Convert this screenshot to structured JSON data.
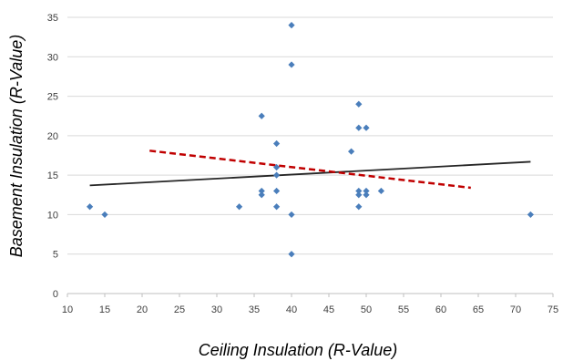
{
  "chart_data": {
    "type": "scatter",
    "title": "",
    "xlabel": "Ceiling Insulation (R-Value)",
    "ylabel": "Basement Insulation (R-Value)",
    "xlim": [
      10,
      75
    ],
    "ylim": [
      0,
      35
    ],
    "x_ticks": [
      10,
      15,
      20,
      25,
      30,
      35,
      40,
      45,
      50,
      55,
      60,
      65,
      70,
      75
    ],
    "y_ticks": [
      0,
      5,
      10,
      15,
      20,
      25,
      30,
      35
    ],
    "grid": "horizontal",
    "legend": "none",
    "series": [
      {
        "marker": "diamond",
        "color": "#4a7ebb",
        "points": [
          [
            13,
            11
          ],
          [
            15,
            10
          ],
          [
            33,
            11
          ],
          [
            36,
            22.5
          ],
          [
            36,
            13
          ],
          [
            36,
            12.5
          ],
          [
            38,
            19
          ],
          [
            38,
            16
          ],
          [
            38,
            15
          ],
          [
            38,
            13
          ],
          [
            38,
            11
          ],
          [
            40,
            34
          ],
          [
            40,
            29
          ],
          [
            40,
            10
          ],
          [
            40,
            5
          ],
          [
            48,
            18
          ],
          [
            49,
            24
          ],
          [
            49,
            21
          ],
          [
            49,
            13
          ],
          [
            49,
            12.5
          ],
          [
            49,
            11
          ],
          [
            50,
            21
          ],
          [
            50,
            13
          ],
          [
            50,
            12.5
          ],
          [
            52,
            13
          ],
          [
            72,
            10
          ]
        ]
      }
    ],
    "lines": [
      {
        "style": "solid",
        "color": "#262626",
        "from": [
          13,
          13.7
        ],
        "to": [
          72,
          16.7
        ]
      },
      {
        "style": "dashed",
        "color": "#c00000",
        "from": [
          21,
          18.1
        ],
        "to": [
          64,
          13.4
        ]
      }
    ]
  }
}
